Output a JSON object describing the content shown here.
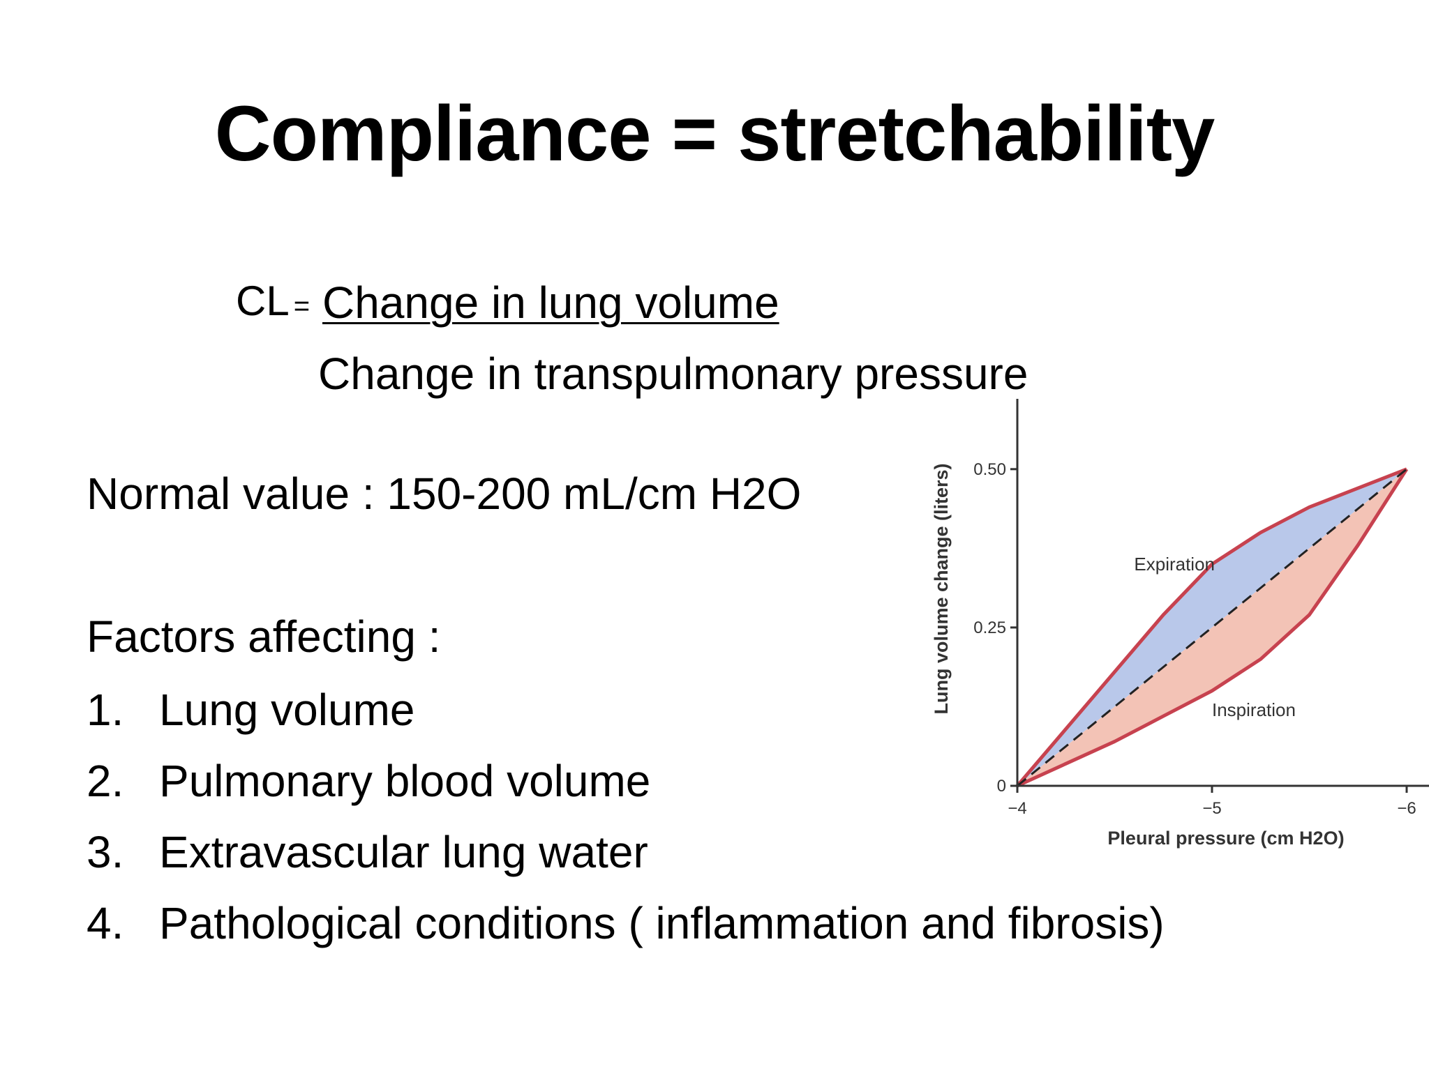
{
  "slide": {
    "title": "Compliance = stretchability",
    "formula": {
      "lhs": "CL",
      "equals": "=",
      "numerator": "Change in lung volume",
      "denominator": "Change in transpulmonary pressure"
    },
    "normal_value": "Normal value : 150-200 mL/cm H2O",
    "factors_heading": "Factors affecting  :",
    "factors": [
      {
        "number": "1.",
        "text": "Lung volume"
      },
      {
        "number": "2.",
        "text": "Pulmonary blood volume"
      },
      {
        "number": "3.",
        "text": "Extravascular lung water"
      },
      {
        "number": "4.",
        "text": "Pathological conditions ( inflammation and fibrosis)"
      }
    ]
  },
  "chart_data": {
    "type": "line",
    "title": "",
    "xlabel": "Pleural pressure (cm H2O)",
    "ylabel": "Lung volume change (liters)",
    "x_ticks": [
      "−4",
      "−5",
      "−6"
    ],
    "y_ticks": [
      "0",
      "0.25",
      "0.50"
    ],
    "xlim": [
      -4,
      -6
    ],
    "ylim": [
      0,
      0.6
    ],
    "annotations": [
      "Expiration",
      "Inspiration"
    ],
    "series": [
      {
        "name": "Expiration",
        "x": [
          -4,
          -4.25,
          -4.5,
          -4.75,
          -5,
          -5.25,
          -5.5,
          -5.75,
          -6
        ],
        "y": [
          0,
          0.09,
          0.18,
          0.27,
          0.35,
          0.4,
          0.44,
          0.47,
          0.5
        ]
      },
      {
        "name": "Inspiration",
        "x": [
          -4,
          -4.25,
          -4.5,
          -4.75,
          -5,
          -5.25,
          -5.5,
          -5.75,
          -6
        ],
        "y": [
          0,
          0.035,
          0.07,
          0.11,
          0.15,
          0.2,
          0.27,
          0.38,
          0.5
        ]
      },
      {
        "x": [
          -4,
          -6
        ],
        "y": [
          0,
          0.5
        ]
      }
    ],
    "colors": {
      "curve": "#c7424f",
      "expiration_fill": "#b9c8ea",
      "inspiration_fill": "#f3c3b6",
      "dashed": "#222222",
      "axis": "#333333",
      "text": "#333333"
    }
  }
}
